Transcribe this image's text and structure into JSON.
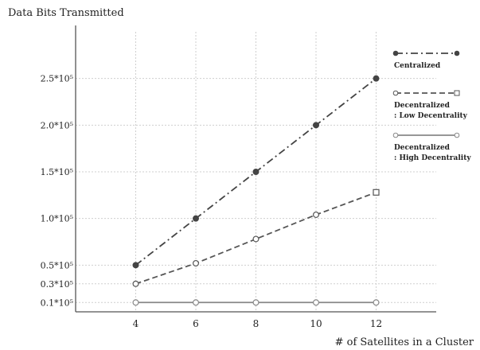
{
  "chart_data": {
    "type": "line",
    "ylabel": "Data Bits Transmitted",
    "xlabel": "# of Satellites in a Cluster",
    "x": [
      4,
      6,
      8,
      10,
      12
    ],
    "xticks": [
      "4",
      "6",
      "8",
      "10",
      "12"
    ],
    "yticks": [
      {
        "value": 0.1,
        "label": "0.1*10⁵"
      },
      {
        "value": 0.3,
        "label": "0.3*10⁵"
      },
      {
        "value": 0.5,
        "label": "0.5*10⁵"
      },
      {
        "value": 1.0,
        "label": "1.0*10⁵"
      },
      {
        "value": 1.5,
        "label": "1.5*10⁵"
      },
      {
        "value": 2.0,
        "label": "2.0*10⁵"
      },
      {
        "value": 2.5,
        "label": "2.5*10⁵"
      }
    ],
    "xlim": [
      2,
      14
    ],
    "ylim": [
      0,
      3.0
    ],
    "y_unit": "×10⁵",
    "grid": true,
    "legend_position": "right",
    "series": [
      {
        "name": "Centralized",
        "values": [
          0.5,
          1.0,
          1.5,
          2.0,
          2.5
        ],
        "line": "dash-dot",
        "marker": "filled-circle",
        "color": "#444444"
      },
      {
        "name": "Decentralized\n: Low Decentrality",
        "values": [
          0.3,
          0.52,
          0.78,
          1.04,
          1.28
        ],
        "line": "dashed",
        "marker": "open-circle-square-end",
        "color": "#555555"
      },
      {
        "name": "Decentralized\n: High Decentrality",
        "values": [
          0.1,
          0.1,
          0.1,
          0.1,
          0.1
        ],
        "line": "solid",
        "marker": "open-circle",
        "color": "#888888"
      }
    ]
  }
}
